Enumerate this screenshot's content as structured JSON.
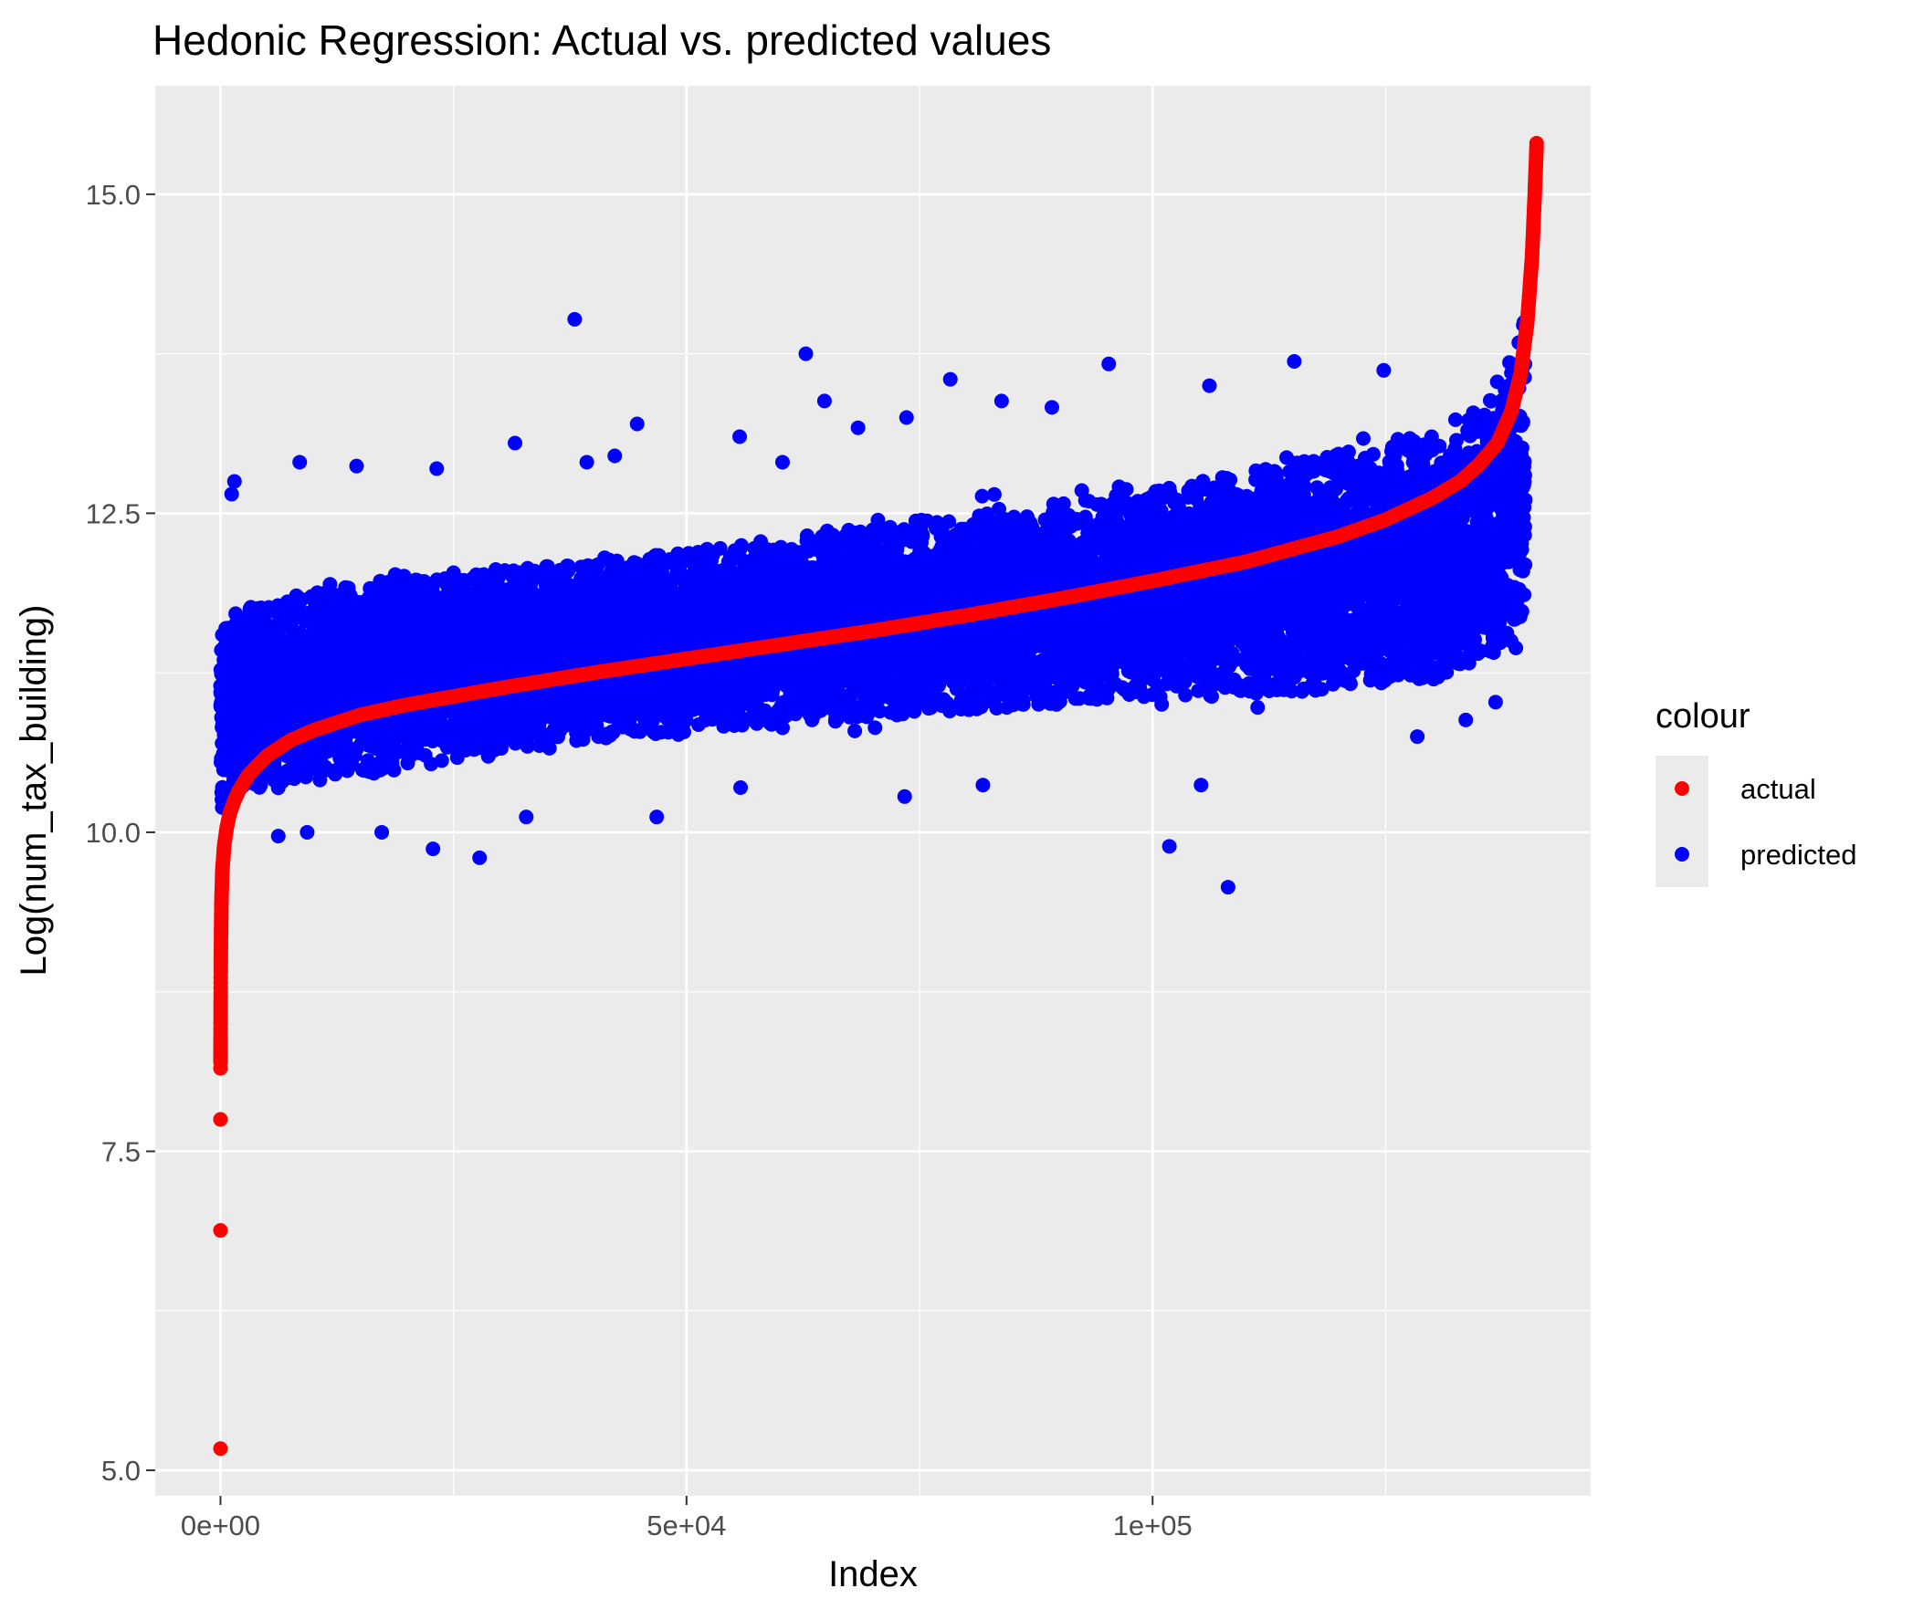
{
  "chart_data": {
    "type": "scatter",
    "title": "Hedonic Regression: Actual vs. predicted values",
    "xlabel": "Index",
    "ylabel": "Log(num_tax_building)",
    "xlim": [
      -7000,
      147000
    ],
    "ylim": [
      4.8,
      15.85
    ],
    "x_ticks": [
      {
        "value": 0,
        "label": "0e+00"
      },
      {
        "value": 50000,
        "label": "5e+04"
      },
      {
        "value": 100000,
        "label": "1e+05"
      }
    ],
    "x_minor_ticks": [
      25000,
      75000,
      125000
    ],
    "y_ticks": [
      {
        "value": 5.0,
        "label": "5.0"
      },
      {
        "value": 7.5,
        "label": "7.5"
      },
      {
        "value": 10.0,
        "label": "10.0"
      },
      {
        "value": 12.5,
        "label": "12.5"
      },
      {
        "value": 15.0,
        "label": "15.0"
      }
    ],
    "y_minor_ticks": [
      6.25,
      8.75,
      11.25,
      13.75
    ],
    "grid": true,
    "legend": {
      "title": "colour",
      "position": "right",
      "entries": [
        {
          "label": "actual",
          "color": "#ff0000"
        },
        {
          "label": "predicted",
          "color": "#0000ff"
        }
      ]
    },
    "n_points_approx": 141500,
    "series": [
      {
        "name": "predicted",
        "color": "#0000ff",
        "band": {
          "x": [
            0,
            2000,
            10000,
            20000,
            30000,
            40000,
            50000,
            60000,
            70000,
            80000,
            90000,
            100000,
            110000,
            120000,
            130000,
            136000,
            140000
          ],
          "lower": [
            10.0,
            10.2,
            10.25,
            10.35,
            10.5,
            10.6,
            10.65,
            10.7,
            10.75,
            10.8,
            10.85,
            10.9,
            10.9,
            10.95,
            11.0,
            11.2,
            11.2
          ],
          "upper": [
            11.7,
            11.9,
            12.05,
            12.15,
            12.2,
            12.25,
            12.35,
            12.4,
            12.55,
            12.65,
            12.75,
            12.85,
            13.0,
            13.15,
            13.35,
            13.55,
            14.3
          ]
        },
        "outliers": [
          {
            "x": 38000,
            "y": 14.02
          },
          {
            "x": 62800,
            "y": 13.75
          },
          {
            "x": 95300,
            "y": 13.67
          },
          {
            "x": 115200,
            "y": 13.69
          },
          {
            "x": 78300,
            "y": 13.55
          },
          {
            "x": 64800,
            "y": 13.38
          },
          {
            "x": 44700,
            "y": 13.2
          },
          {
            "x": 68400,
            "y": 13.17
          },
          {
            "x": 31600,
            "y": 13.05
          },
          {
            "x": 1500,
            "y": 12.75
          },
          {
            "x": 1200,
            "y": 12.65
          },
          {
            "x": 8500,
            "y": 12.9
          },
          {
            "x": 23200,
            "y": 12.85
          },
          {
            "x": 14600,
            "y": 12.87
          },
          {
            "x": 42300,
            "y": 12.95
          },
          {
            "x": 39300,
            "y": 12.9
          },
          {
            "x": 55700,
            "y": 13.1
          },
          {
            "x": 60300,
            "y": 12.9
          },
          {
            "x": 73600,
            "y": 13.25
          },
          {
            "x": 83800,
            "y": 13.38
          },
          {
            "x": 89200,
            "y": 13.33
          },
          {
            "x": 106100,
            "y": 13.5
          },
          {
            "x": 124800,
            "y": 13.62
          },
          {
            "x": 22800,
            "y": 9.87
          },
          {
            "x": 27800,
            "y": 9.8
          },
          {
            "x": 46800,
            "y": 10.12
          },
          {
            "x": 101800,
            "y": 9.89
          },
          {
            "x": 108100,
            "y": 9.57
          },
          {
            "x": 32800,
            "y": 10.12
          },
          {
            "x": 55800,
            "y": 10.35
          },
          {
            "x": 73400,
            "y": 10.28
          },
          {
            "x": 81800,
            "y": 10.37
          },
          {
            "x": 105200,
            "y": 10.37
          },
          {
            "x": 133600,
            "y": 10.88
          },
          {
            "x": 136800,
            "y": 11.02
          },
          {
            "x": 128400,
            "y": 10.75
          },
          {
            "x": 6200,
            "y": 9.97
          },
          {
            "x": 17300,
            "y": 10.0
          },
          {
            "x": 9300,
            "y": 10.0
          }
        ]
      },
      {
        "name": "actual",
        "color": "#ff0000",
        "curve": {
          "x": [
            0,
            10,
            30,
            60,
            100,
            200,
            400,
            700,
            1000,
            1500,
            2000,
            3000,
            5000,
            7500,
            10000,
            15000,
            20000,
            30000,
            40000,
            50000,
            60000,
            70000,
            80000,
            90000,
            100000,
            110000,
            120000,
            125000,
            130000,
            133000,
            135000,
            137000,
            138500,
            139500,
            140200,
            140700,
            141000,
            141200
          ],
          "y": [
            8.2,
            8.5,
            8.9,
            9.2,
            9.45,
            9.7,
            9.9,
            10.05,
            10.15,
            10.25,
            10.33,
            10.45,
            10.6,
            10.72,
            10.8,
            10.92,
            11.0,
            11.13,
            11.25,
            11.36,
            11.47,
            11.58,
            11.7,
            11.83,
            11.97,
            12.12,
            12.32,
            12.45,
            12.62,
            12.75,
            12.88,
            13.05,
            13.3,
            13.6,
            14.0,
            14.5,
            15.0,
            15.38
          ]
        },
        "outliers": [
          {
            "x": 0,
            "y": 5.17
          },
          {
            "x": 0,
            "y": 6.88
          },
          {
            "x": 0,
            "y": 7.75
          },
          {
            "x": 0,
            "y": 8.15
          },
          {
            "x": 0,
            "y": 8.25
          },
          {
            "x": 141200,
            "y": 15.4
          }
        ]
      }
    ]
  }
}
